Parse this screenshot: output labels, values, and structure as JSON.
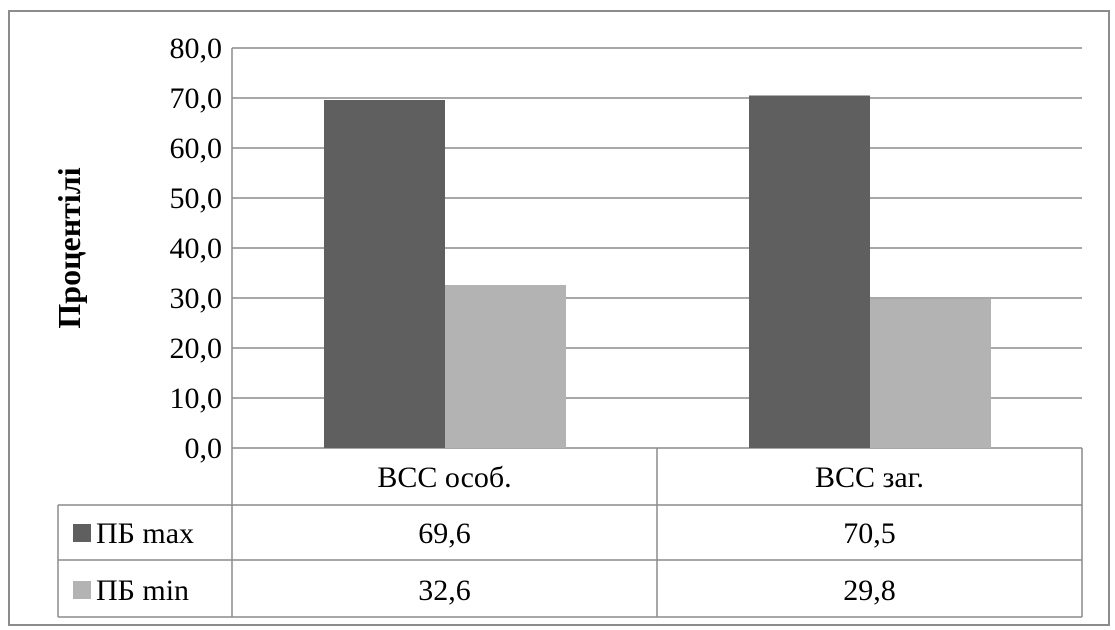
{
  "chart_data": {
    "type": "bar",
    "categories": [
      "ВСС особ.",
      "ВСС заг."
    ],
    "series": [
      {
        "name": "ПБ max",
        "values": [
          69.6,
          70.5
        ],
        "color": "#5f5f5f",
        "labels": [
          "69,6",
          "70,5"
        ]
      },
      {
        "name": "ПБ min",
        "values": [
          32.6,
          29.8
        ],
        "color": "#b3b3b3",
        "labels": [
          "32,6",
          "29,8"
        ]
      }
    ],
    "ylabel": "Процентілі",
    "ylim": [
      0,
      80
    ],
    "yticks": [
      0,
      10,
      20,
      30,
      40,
      50,
      60,
      70,
      80
    ],
    "ytick_labels": [
      "0,0",
      "10,0",
      "20,0",
      "30,0",
      "40,0",
      "50,0",
      "60,0",
      "70,0",
      "80,0"
    ],
    "grid": true,
    "legend": "data-table"
  }
}
